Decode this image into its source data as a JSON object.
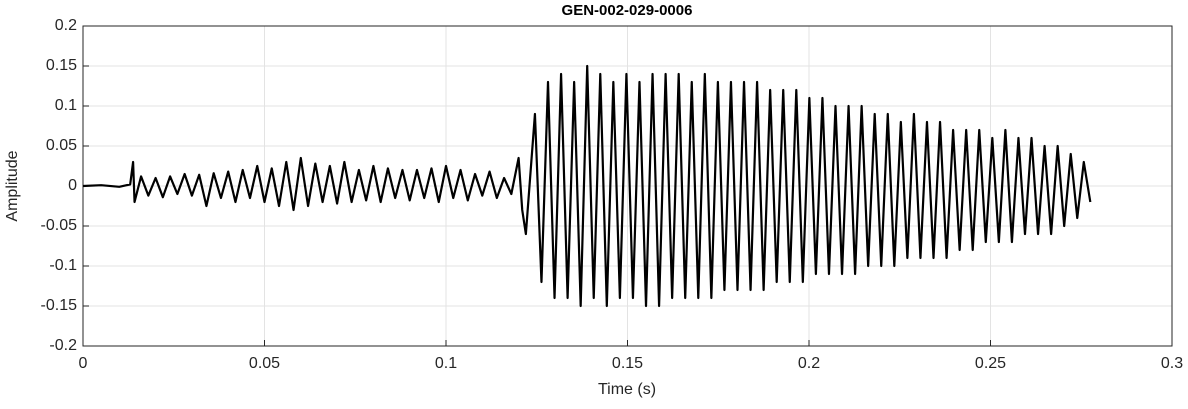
{
  "chart_data": {
    "type": "line",
    "title": "GEN-002-029-0006",
    "x_label": "Time (s)",
    "y_label": "Amplitude",
    "color": "#000000",
    "grid": true,
    "xlim": [
      0,
      0.3
    ],
    "xticks": [
      0,
      0.05,
      0.1,
      0.15,
      0.2,
      0.25,
      0.3
    ],
    "ylim": [
      -0.2,
      0.2
    ],
    "yticks": [
      -0.2,
      -0.15,
      -0.1,
      -0.05,
      0,
      0.05,
      0.1,
      0.15,
      0.2
    ],
    "x": [
      0,
      0.005,
      0.01,
      0.013,
      0.0138,
      0.0142,
      0.016,
      0.018,
      0.02,
      0.022,
      0.024,
      0.026,
      0.028,
      0.03,
      0.032,
      0.034,
      0.036,
      0.038,
      0.04,
      0.042,
      0.044,
      0.046,
      0.048,
      0.05,
      0.052,
      0.054,
      0.056,
      0.058,
      0.06,
      0.062,
      0.064,
      0.066,
      0.068,
      0.07,
      0.072,
      0.074,
      0.076,
      0.078,
      0.08,
      0.082,
      0.084,
      0.086,
      0.088,
      0.09,
      0.092,
      0.094,
      0.096,
      0.098,
      0.1,
      0.102,
      0.104,
      0.106,
      0.108,
      0.11,
      0.112,
      0.114,
      0.116,
      0.118,
      0.12,
      0.121,
      0.122,
      0.1245,
      0.1263,
      0.1281,
      0.1299,
      0.1317,
      0.1335,
      0.1353,
      0.1371,
      0.1389,
      0.1407,
      0.1425,
      0.1443,
      0.1461,
      0.1479,
      0.1497,
      0.1515,
      0.1533,
      0.1551,
      0.1569,
      0.1587,
      0.1605,
      0.1623,
      0.1641,
      0.1659,
      0.1677,
      0.1695,
      0.1713,
      0.1731,
      0.1749,
      0.1767,
      0.1785,
      0.1803,
      0.1821,
      0.1839,
      0.1857,
      0.1875,
      0.1893,
      0.1911,
      0.1929,
      0.1947,
      0.1965,
      0.1983,
      0.2001,
      0.2019,
      0.2037,
      0.2055,
      0.2073,
      0.2091,
      0.2109,
      0.2127,
      0.2145,
      0.2163,
      0.2181,
      0.2199,
      0.2217,
      0.2235,
      0.2253,
      0.2271,
      0.2289,
      0.2307,
      0.2325,
      0.2343,
      0.2361,
      0.2379,
      0.2397,
      0.2415,
      0.2433,
      0.2451,
      0.2469,
      0.2487,
      0.2505,
      0.2523,
      0.2541,
      0.2559,
      0.2577,
      0.2595,
      0.2613,
      0.2631,
      0.2649,
      0.2667,
      0.2685,
      0.2703,
      0.2721,
      0.2739,
      0.2757,
      0.2775
    ],
    "values": [
      0,
      0.001,
      -0.001,
      0.002,
      0.03,
      -0.02,
      0.012,
      -0.012,
      0.01,
      -0.014,
      0.012,
      -0.01,
      0.015,
      -0.012,
      0.014,
      -0.025,
      0.016,
      -0.015,
      0.018,
      -0.02,
      0.02,
      -0.015,
      0.025,
      -0.02,
      0.022,
      -0.025,
      0.03,
      -0.03,
      0.035,
      -0.025,
      0.028,
      -0.02,
      0.025,
      -0.022,
      0.03,
      -0.02,
      0.02,
      -0.018,
      0.025,
      -0.02,
      0.022,
      -0.015,
      0.02,
      -0.018,
      0.02,
      -0.015,
      0.022,
      -0.02,
      0.025,
      -0.015,
      0.02,
      -0.018,
      0.015,
      -0.012,
      0.018,
      -0.015,
      0.01,
      -0.01,
      0.035,
      -0.03,
      -0.06,
      0.09,
      -0.12,
      0.13,
      -0.14,
      0.14,
      -0.14,
      0.13,
      -0.15,
      0.15,
      -0.14,
      0.14,
      -0.15,
      0.13,
      -0.14,
      0.14,
      -0.14,
      0.13,
      -0.15,
      0.14,
      -0.15,
      0.14,
      -0.14,
      0.14,
      -0.14,
      0.13,
      -0.14,
      0.14,
      -0.14,
      0.13,
      -0.13,
      0.13,
      -0.13,
      0.13,
      -0.13,
      0.13,
      -0.13,
      0.12,
      -0.12,
      0.12,
      -0.12,
      0.12,
      -0.12,
      0.11,
      -0.11,
      0.11,
      -0.11,
      0.1,
      -0.11,
      0.1,
      -0.11,
      0.1,
      -0.1,
      0.09,
      -0.1,
      0.09,
      -0.1,
      0.08,
      -0.09,
      0.09,
      -0.09,
      0.08,
      -0.09,
      0.08,
      -0.09,
      0.07,
      -0.08,
      0.07,
      -0.08,
      0.07,
      -0.07,
      0.06,
      -0.07,
      0.07,
      -0.07,
      0.06,
      -0.06,
      0.06,
      -0.06,
      0.05,
      -0.06,
      0.05,
      -0.05,
      0.04,
      -0.04,
      0.03,
      -0.02
    ]
  }
}
